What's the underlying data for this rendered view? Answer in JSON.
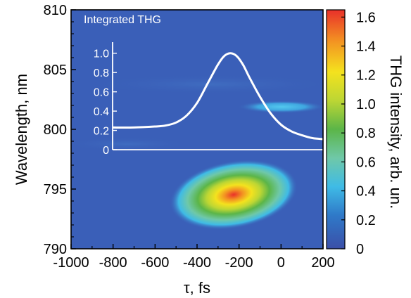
{
  "chart_data": [
    {
      "type": "heatmap",
      "xlabel": "τ, fs",
      "ylabel": "Wavelength, nm",
      "xlim": [
        -1000,
        200
      ],
      "ylim": [
        790,
        810
      ],
      "xticks": [
        -1000,
        -800,
        -600,
        -400,
        -200,
        0,
        200
      ],
      "yticks": [
        790,
        795,
        800,
        805,
        810
      ],
      "colorbar": {
        "label": "THG intensity, arb. un.",
        "range": [
          0,
          1.65
        ],
        "ticks": [
          0,
          0.2,
          0.4,
          0.6,
          0.8,
          1.0,
          1.2,
          1.4,
          1.6
        ],
        "colors": [
          "#3b4fa8",
          "#2f79c8",
          "#3fbbe6",
          "#6fc8a8",
          "#5bb548",
          "#bcd634",
          "#f4e21e",
          "#f39222",
          "#e9302a"
        ]
      },
      "background_color": "#3a5fb8",
      "features": [
        {
          "name": "main peak",
          "x": -240,
          "y": 794.4,
          "value": 1.6
        },
        {
          "name": "secondary band",
          "x": 30,
          "y": 801.9,
          "value": 0.4
        }
      ]
    },
    {
      "type": "line",
      "title": "Integrated THG",
      "xlim": [
        -800,
        200
      ],
      "ylim": [
        0,
        1.1
      ],
      "yticks": [
        0,
        0.2,
        0.4,
        0.6,
        0.8,
        1.0
      ],
      "series": [
        {
          "x": [
            -800,
            -700,
            -600,
            -550,
            -500,
            -450,
            -400,
            -350,
            -300,
            -270,
            -240,
            -210,
            -180,
            -150,
            -100,
            -50,
            0,
            50,
            100,
            150,
            200
          ],
          "y": [
            0.23,
            0.23,
            0.24,
            0.25,
            0.28,
            0.35,
            0.48,
            0.68,
            0.88,
            0.97,
            1.0,
            0.97,
            0.88,
            0.75,
            0.55,
            0.38,
            0.26,
            0.19,
            0.15,
            0.12,
            0.11
          ]
        }
      ]
    }
  ]
}
